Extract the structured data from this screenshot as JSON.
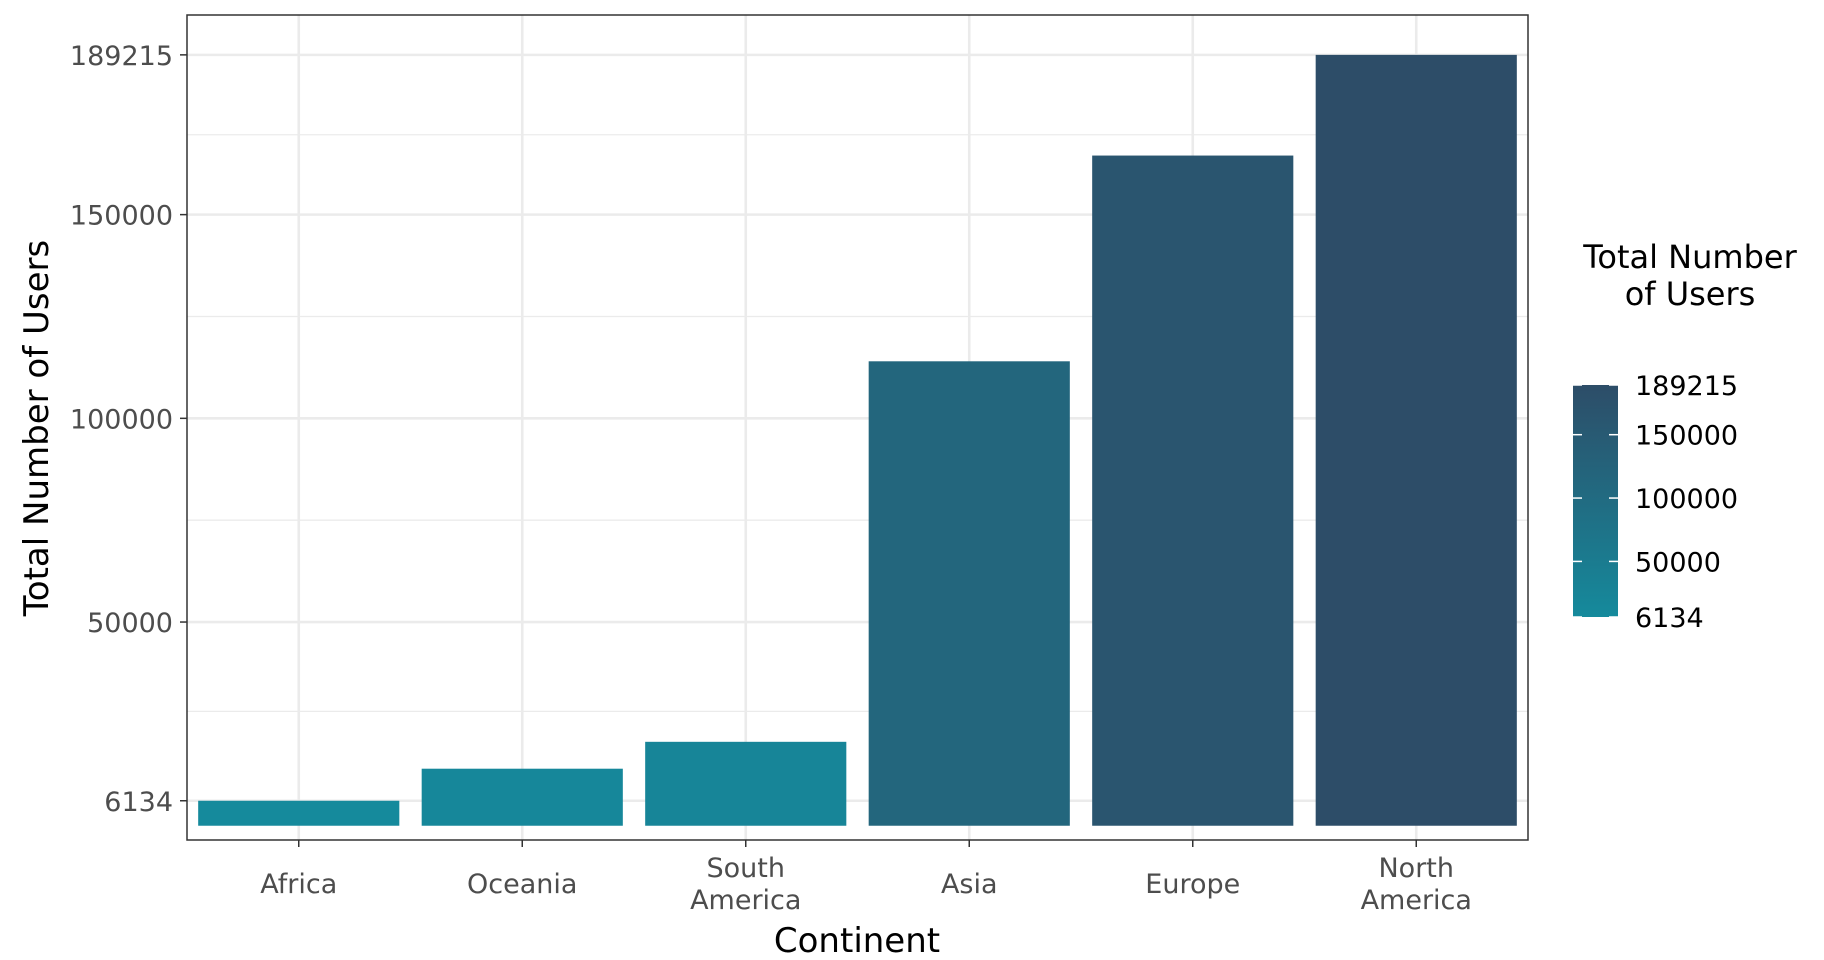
{
  "chart_data": {
    "type": "bar",
    "categories": [
      "Africa",
      "Oceania",
      "South America",
      "Asia",
      "Europe",
      "North America"
    ],
    "category_label_lines": [
      [
        "Africa"
      ],
      [
        "Oceania"
      ],
      [
        "South",
        "America"
      ],
      [
        "Asia"
      ],
      [
        "Europe"
      ],
      [
        "North",
        "America"
      ]
    ],
    "values": [
      6134,
      14000,
      20600,
      114000,
      164500,
      189215
    ],
    "xlabel": "Continent",
    "ylabel": "Total Number of Users",
    "y_ticks": [
      6134,
      50000,
      100000,
      150000,
      189215
    ],
    "y_tick_labels": [
      "6134",
      "50000",
      "100000",
      "150000",
      "189215"
    ],
    "ylim": [
      -3500,
      199000
    ],
    "grid": true,
    "legend": {
      "title_lines": [
        "Total Number",
        "of Users"
      ],
      "type": "colorbar",
      "placement": "right",
      "breaks": [
        189215,
        150000,
        100000,
        50000,
        6134
      ],
      "break_labels": [
        "189215",
        "150000",
        "100000",
        "50000",
        "6134"
      ],
      "range": [
        6134,
        189215
      ]
    },
    "colors": {
      "low": "#158a9c",
      "high": "#2d4d68"
    }
  }
}
